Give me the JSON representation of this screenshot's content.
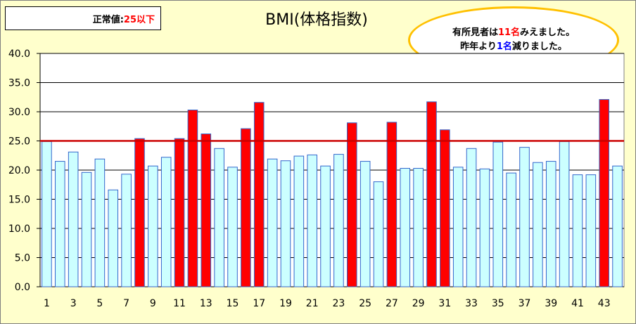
{
  "colors": {
    "background": "#ffffcc",
    "bar_normal": "#ccffff",
    "bar_normal_border": "#3366cc",
    "bar_over": "#ff0000",
    "bar_over_border": "#3366cc",
    "threshold_line": "#cc0000",
    "ellipse_border": "#ffc000"
  },
  "normal_box": {
    "label": "正常値:",
    "value": "25以下"
  },
  "note": {
    "line1_prefix": "有所見者は",
    "line1_count": "11名",
    "line1_suffix": "みえました。",
    "line2_prefix": "昨年より",
    "line2_count": "1名",
    "line2_suffix": "減りました。"
  },
  "chart_data": {
    "type": "bar",
    "title": "BMI(体格指数)",
    "xlabel": "",
    "ylabel": "",
    "ylim": [
      0,
      40
    ],
    "yticks": [
      "0.0",
      "5.0",
      "10.0",
      "15.0",
      "20.0",
      "25.0",
      "30.0",
      "35.0",
      "40.0"
    ],
    "threshold": 25,
    "grid": true,
    "categories": [
      1,
      2,
      3,
      4,
      5,
      6,
      7,
      8,
      9,
      10,
      11,
      12,
      13,
      14,
      15,
      16,
      17,
      18,
      19,
      20,
      21,
      22,
      23,
      24,
      25,
      26,
      27,
      28,
      29,
      30,
      31,
      32,
      33,
      34,
      35,
      36,
      37,
      38,
      39,
      40,
      41,
      42,
      43,
      44
    ],
    "xtick_labels": [
      "1",
      "",
      "3",
      "",
      "5",
      "",
      "7",
      "",
      "9",
      "",
      "11",
      "",
      "13",
      "",
      "15",
      "",
      "17",
      "",
      "19",
      "",
      "21",
      "",
      "23",
      "",
      "25",
      "",
      "27",
      "",
      "29",
      "",
      "31",
      "",
      "33",
      "",
      "35",
      "",
      "37",
      "",
      "39",
      "",
      "41",
      "",
      "43",
      ""
    ],
    "values": [
      24.9,
      21.5,
      23.1,
      19.6,
      21.9,
      16.6,
      19.3,
      25.4,
      20.7,
      22.2,
      25.4,
      30.3,
      26.2,
      23.7,
      20.5,
      27.1,
      31.6,
      21.9,
      21.6,
      22.4,
      22.6,
      20.7,
      22.7,
      28.1,
      21.5,
      18.0,
      28.2,
      20.3,
      20.3,
      31.7,
      26.9,
      20.5,
      23.7,
      20.2,
      24.8,
      19.5,
      23.9,
      21.3,
      21.5,
      24.9,
      19.2,
      19.2,
      32.1,
      20.7
    ]
  }
}
